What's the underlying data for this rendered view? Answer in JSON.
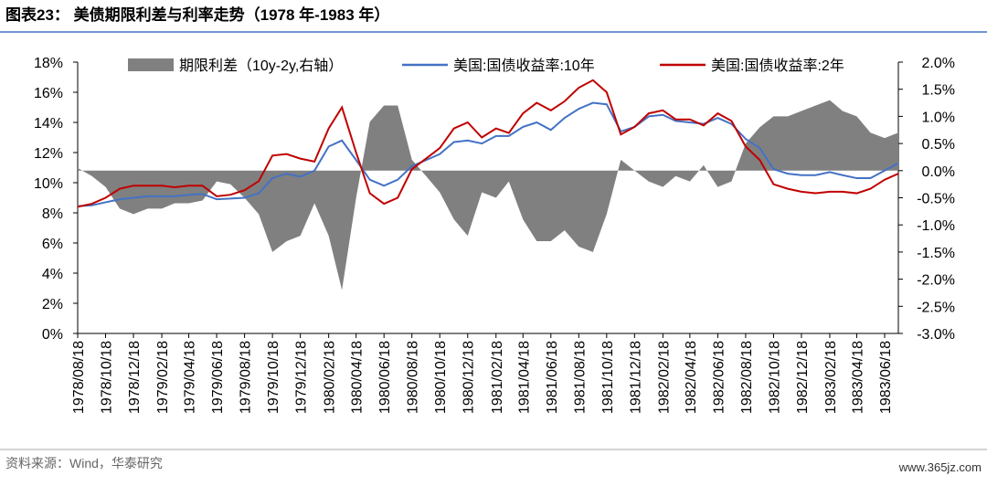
{
  "title": "图表23：  美债期限利差与利率走势（1978 年-1983 年）",
  "source": "资料来源：Wind，华泰研究",
  "watermark": "www.365jz.com",
  "chart_data": {
    "type": "line",
    "x": [
      "1978/08/18",
      "1978/09/18",
      "1978/10/18",
      "1978/11/18",
      "1978/12/18",
      "1979/01/18",
      "1979/02/18",
      "1979/03/18",
      "1979/04/18",
      "1979/05/18",
      "1979/06/18",
      "1979/07/18",
      "1979/08/18",
      "1979/09/18",
      "1979/10/18",
      "1979/11/18",
      "1979/12/18",
      "1980/01/18",
      "1980/02/18",
      "1980/03/18",
      "1980/04/18",
      "1980/05/18",
      "1980/06/18",
      "1980/07/18",
      "1980/08/18",
      "1980/09/18",
      "1980/10/18",
      "1980/11/18",
      "1980/12/18",
      "1981/01/18",
      "1981/02/18",
      "1981/03/18",
      "1981/04/18",
      "1981/05/18",
      "1981/06/18",
      "1981/07/18",
      "1981/08/18",
      "1981/09/18",
      "1981/10/18",
      "1981/11/18",
      "1981/12/18",
      "1982/01/18",
      "1982/02/18",
      "1982/03/18",
      "1982/04/18",
      "1982/05/18",
      "1982/06/18",
      "1982/07/18",
      "1982/08/18",
      "1982/09/18",
      "1982/10/18",
      "1982/11/18",
      "1982/12/18",
      "1983/01/18",
      "1983/02/18",
      "1983/03/18",
      "1983/04/18",
      "1983/05/18",
      "1983/06/18",
      "1983/07/18"
    ],
    "xlim": [
      "1978/08/18",
      "1983/07/18"
    ],
    "xticks": [
      "1978/08/18",
      "1978/10/18",
      "1978/12/18",
      "1979/02/18",
      "1979/04/18",
      "1979/06/18",
      "1979/08/18",
      "1979/10/18",
      "1979/12/18",
      "1980/02/18",
      "1980/04/18",
      "1980/06/18",
      "1980/08/18",
      "1980/10/18",
      "1980/12/18",
      "1981/02/18",
      "1981/04/18",
      "1981/06/18",
      "1981/08/18",
      "1981/10/18",
      "1981/12/18",
      "1982/02/18",
      "1982/04/18",
      "1982/06/18",
      "1982/08/18",
      "1982/10/18",
      "1982/12/18",
      "1983/02/18",
      "1983/04/18",
      "1983/06/18"
    ],
    "ylim": [
      0,
      18
    ],
    "yticks": [
      {
        "value": 0,
        "label": "0%"
      },
      {
        "value": 2,
        "label": "2%"
      },
      {
        "value": 4,
        "label": "4%"
      },
      {
        "value": 6,
        "label": "6%"
      },
      {
        "value": 8,
        "label": "8%"
      },
      {
        "value": 10,
        "label": "10%"
      },
      {
        "value": 12,
        "label": "12%"
      },
      {
        "value": 14,
        "label": "14%"
      },
      {
        "value": 16,
        "label": "16%"
      },
      {
        "value": 18,
        "label": "18%"
      }
    ],
    "y2lim": [
      -3,
      2
    ],
    "y2ticks": [
      {
        "value": -3,
        "label": "-3.0%"
      },
      {
        "value": -2.5,
        "label": "-2.5%"
      },
      {
        "value": -2,
        "label": "-2.0%"
      },
      {
        "value": -1.5,
        "label": "-1.5%"
      },
      {
        "value": -1,
        "label": "-1.0%"
      },
      {
        "value": -0.5,
        "label": "-0.5%"
      },
      {
        "value": 0,
        "label": "0.0%"
      },
      {
        "value": 0.5,
        "label": "0.5%"
      },
      {
        "value": 1,
        "label": "1.0%"
      },
      {
        "value": 1.5,
        "label": "1.5%"
      },
      {
        "value": 2,
        "label": "2.0%"
      }
    ],
    "series": [
      {
        "name": "期限利差（10y-2y,右轴）",
        "color": "#808080",
        "axis": "y2",
        "kind": "area",
        "values": [
          0.05,
          -0.1,
          -0.3,
          -0.7,
          -0.8,
          -0.7,
          -0.7,
          -0.6,
          -0.6,
          -0.55,
          -0.2,
          -0.25,
          -0.5,
          -0.8,
          -1.5,
          -1.3,
          -1.2,
          -0.6,
          -1.2,
          -2.2,
          -0.5,
          0.9,
          1.2,
          1.2,
          0.2,
          -0.1,
          -0.4,
          -0.9,
          -1.2,
          -0.4,
          -0.5,
          -0.2,
          -0.9,
          -1.3,
          -1.3,
          -1.1,
          -1.4,
          -1.5,
          -0.8,
          0.2,
          0.0,
          -0.2,
          -0.3,
          -0.1,
          -0.2,
          0.1,
          -0.3,
          -0.2,
          0.5,
          0.8,
          1.0,
          1.0,
          1.1,
          1.2,
          1.3,
          1.1,
          1.0,
          0.7,
          0.6,
          0.7
        ]
      },
      {
        "name": "美国:国债收益率:10年",
        "color": "#4472c4",
        "kind": "line",
        "values": [
          8.45,
          8.5,
          8.7,
          8.9,
          9.0,
          9.1,
          9.1,
          9.1,
          9.2,
          9.25,
          8.9,
          8.95,
          9.0,
          9.3,
          10.3,
          10.6,
          10.4,
          10.8,
          12.4,
          12.8,
          11.5,
          10.2,
          9.8,
          10.2,
          11.1,
          11.5,
          11.9,
          12.7,
          12.8,
          12.6,
          13.1,
          13.1,
          13.7,
          14.0,
          13.5,
          14.3,
          14.9,
          15.3,
          15.2,
          13.4,
          13.7,
          14.4,
          14.5,
          14.1,
          14.0,
          13.9,
          14.3,
          13.9,
          12.9,
          12.3,
          10.9,
          10.6,
          10.5,
          10.5,
          10.7,
          10.5,
          10.3,
          10.3,
          10.8,
          11.3
        ]
      },
      {
        "name": "美国:国债收益率:2年",
        "color": "#c00000",
        "kind": "line",
        "values": [
          8.4,
          8.6,
          9.0,
          9.6,
          9.8,
          9.8,
          9.8,
          9.7,
          9.8,
          9.8,
          9.1,
          9.2,
          9.5,
          10.1,
          11.8,
          11.9,
          11.6,
          11.4,
          13.6,
          15.0,
          12.0,
          9.3,
          8.6,
          9.0,
          10.9,
          11.6,
          12.3,
          13.6,
          14.0,
          13.0,
          13.6,
          13.3,
          14.6,
          15.3,
          14.8,
          15.4,
          16.3,
          16.8,
          16.0,
          13.2,
          13.7,
          14.6,
          14.8,
          14.2,
          14.2,
          13.8,
          14.6,
          14.1,
          12.4,
          11.5,
          9.9,
          9.6,
          9.4,
          9.3,
          9.4,
          9.4,
          9.3,
          9.6,
          10.2,
          10.6
        ]
      }
    ]
  }
}
